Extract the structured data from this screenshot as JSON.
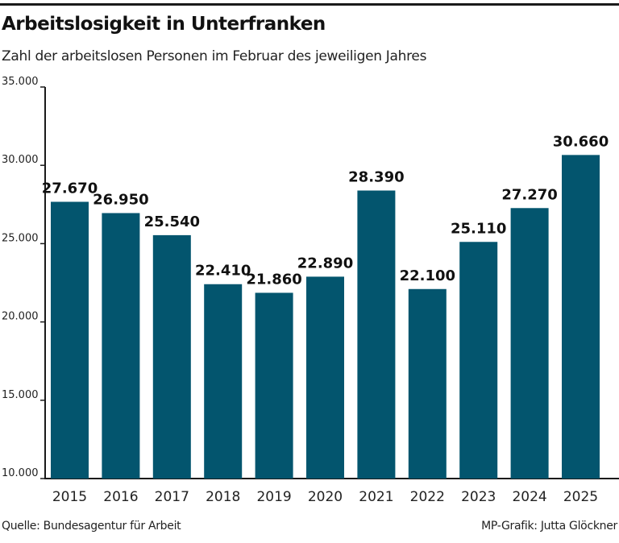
{
  "header": {
    "title": "Arbeitslosigkeit in Unterfranken",
    "subtitle": "Zahl der arbeitslosen Personen im Februar des jeweiligen Jahres"
  },
  "footer": {
    "source": "Quelle: Bundesagentur für Arbeit",
    "credit": "MP-Grafik: Jutta Glöckner"
  },
  "colors": {
    "bar": "#03556e",
    "text": "#111111",
    "axis": "#1a1a1a"
  },
  "chart_data": {
    "type": "bar",
    "title": "Arbeitslosigkeit in Unterfranken",
    "subtitle": "Zahl der arbeitslosen Personen im Februar des jeweiligen Jahres",
    "xlabel": "",
    "ylabel": "",
    "categories": [
      "2015",
      "2016",
      "2017",
      "2018",
      "2019",
      "2020",
      "2021",
      "2022",
      "2023",
      "2024",
      "2025"
    ],
    "values": [
      27670,
      26950,
      25540,
      22410,
      21860,
      22890,
      28390,
      22100,
      25110,
      27270,
      30660
    ],
    "value_labels": [
      "27.670",
      "26.950",
      "25.540",
      "22.410",
      "21.860",
      "22.890",
      "28.390",
      "22.100",
      "25.110",
      "27.270",
      "30.660"
    ],
    "ylim": [
      10000,
      35000
    ],
    "yticks": [
      10000,
      15000,
      20000,
      25000,
      30000,
      35000
    ],
    "ytick_labels": [
      "10.000",
      "15.000",
      "20.000",
      "25.000",
      "30.000",
      "35.000"
    ],
    "grid": false,
    "legend": "none"
  }
}
